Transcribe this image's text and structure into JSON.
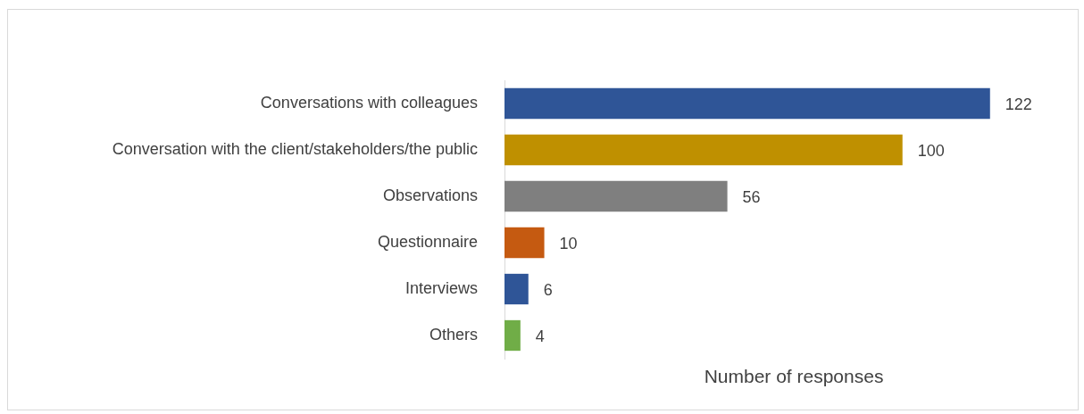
{
  "chart_data": {
    "type": "bar",
    "orientation": "horizontal",
    "xlabel": "Number of responses",
    "categories": [
      "Conversations with colleagues",
      "Conversation with the client/stakeholders/the public",
      "Observations",
      "Questionnaire",
      "Interviews",
      "Others"
    ],
    "values": [
      122,
      100,
      56,
      10,
      6,
      4
    ],
    "colors": [
      "#2f5597",
      "#bf9000",
      "#7f7f7f",
      "#c55a11",
      "#2f5597",
      "#70ad47"
    ],
    "tick_labels": "y",
    "data_labels": true,
    "grid": false,
    "legend": false
  }
}
